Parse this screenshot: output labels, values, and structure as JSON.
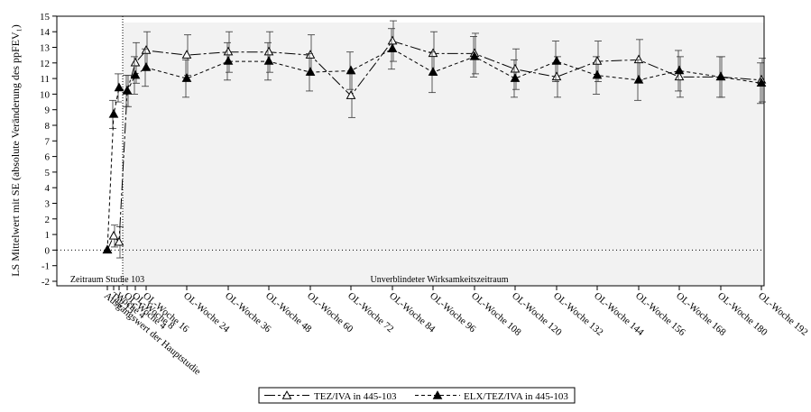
{
  "chart_data": {
    "type": "line",
    "ylabel": "LS Mittelwert mit SE (absolute Veränderung des ppFEV₁)",
    "ylim": [
      -2,
      15
    ],
    "yticks": [
      -2,
      -1,
      0,
      1,
      2,
      3,
      4,
      5,
      6,
      7,
      8,
      9,
      10,
      11,
      12,
      13,
      14,
      15
    ],
    "grid": false,
    "reference_line_y": 0,
    "legend_position": "bottom-center",
    "regions": [
      {
        "label": "Zeitraum Studie 103",
        "shaded": false
      },
      {
        "label": "Unverblindeter Wirksamkeitszeitraum",
        "shaded": true
      }
    ],
    "x_labels": [
      "Ausgangswert der Hauptstudie",
      "Tag 15",
      "Woche 4",
      "OL-Woche 4",
      "OL-Woche 8",
      "OL-Woche 16",
      "OL-Woche 24",
      "OL-Woche 36",
      "OL-Woche 48",
      "OL-Woche 60",
      "OL-Woche 72",
      "OL-Woche 84",
      "OL-Woche 96",
      "OL-Woche 108",
      "OL-Woche 120",
      "OL-Woche 132",
      "OL-Woche 144",
      "OL-Woche 156",
      "OL-Woche 168",
      "OL-Woche 180",
      "OL-Woche 192"
    ],
    "series": [
      {
        "name": "TEZ/IVA in 445-103",
        "marker": "open-triangle",
        "line": "long-dash",
        "values": [
          0,
          0.9,
          0.5,
          10.2,
          12.0,
          12.8,
          12.5,
          12.7,
          12.7,
          12.5,
          9.9,
          13.4,
          12.6,
          12.6,
          11.6,
          11.1,
          12.1,
          12.2,
          11.1,
          11.1,
          10.9
        ],
        "se": [
          0,
          0.7,
          1.0,
          1.0,
          1.3,
          1.2,
          1.3,
          1.3,
          1.3,
          1.3,
          1.4,
          1.3,
          1.4,
          1.3,
          1.3,
          1.3,
          1.3,
          1.3,
          1.3,
          1.3,
          1.4
        ]
      },
      {
        "name": "ELX/TEZ/IVA in 445-103",
        "marker": "filled-triangle",
        "line": "short-dash",
        "values": [
          0,
          8.7,
          10.4,
          10.2,
          11.2,
          11.7,
          11.0,
          12.1,
          12.1,
          11.4,
          11.5,
          12.9,
          11.4,
          12.4,
          11.0,
          12.1,
          11.2,
          10.9,
          11.5,
          11.1,
          10.7
        ],
        "se": [
          0,
          0.9,
          0.9,
          1.0,
          1.2,
          1.2,
          1.2,
          1.2,
          1.2,
          1.2,
          1.2,
          1.3,
          1.3,
          1.3,
          1.2,
          1.3,
          1.2,
          1.3,
          1.3,
          1.3,
          1.3
        ]
      }
    ]
  }
}
